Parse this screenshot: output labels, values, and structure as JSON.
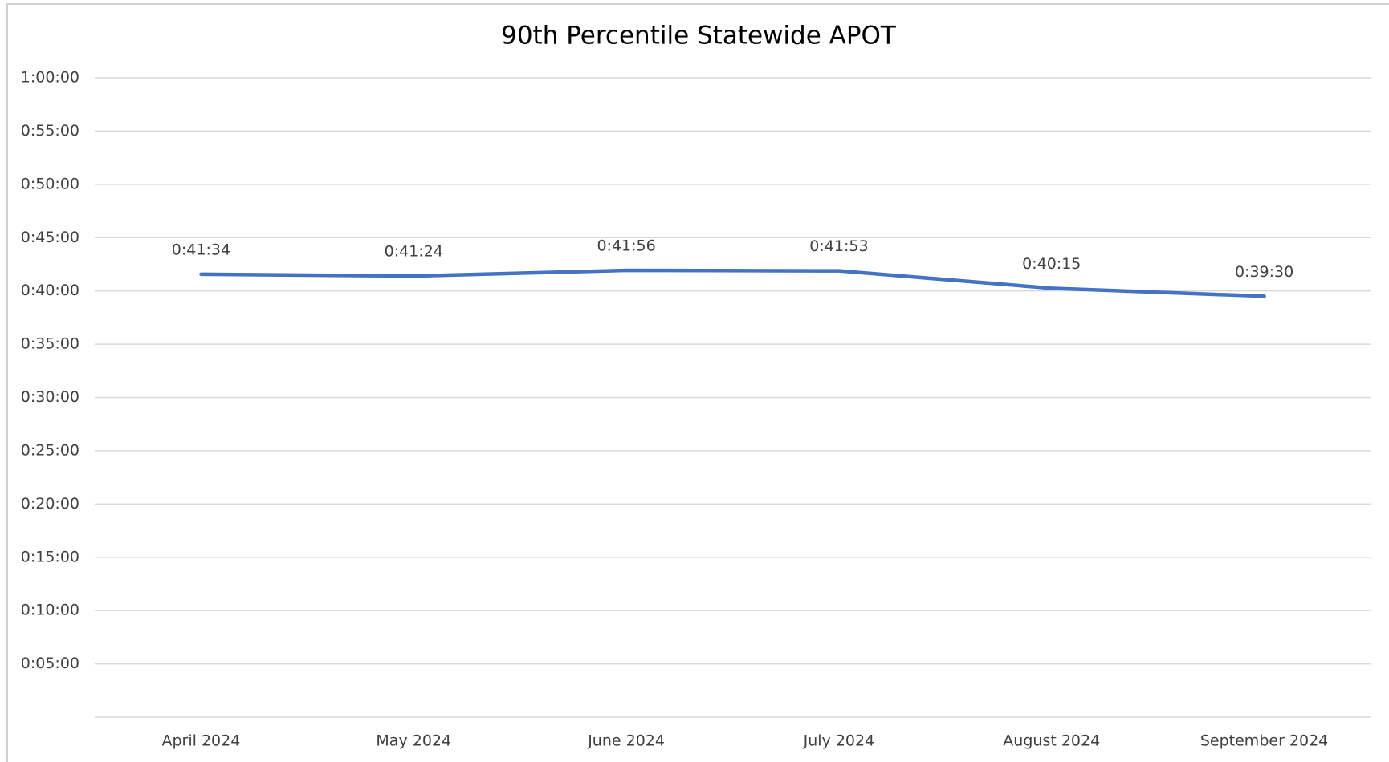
{
  "chart_data": {
    "type": "line",
    "title": "90th Percentile Statewide APOT",
    "categories": [
      "April 2024",
      "May 2024",
      "June 2024",
      "July 2024",
      "August 2024",
      "September 2024"
    ],
    "series": [
      {
        "name": "90th Percentile Statewide APOT",
        "color": "#4472c4",
        "values": [
          2494,
          2484,
          2516,
          2513,
          2415,
          2370
        ],
        "value_labels": [
          "0:41:34",
          "0:41:24",
          "0:41:56",
          "0:41:53",
          "0:40:15",
          "0:39:30"
        ]
      }
    ],
    "ylim": [
      0,
      3600
    ],
    "yticks": [
      {
        "value": 300,
        "label": "0:05:00"
      },
      {
        "value": 600,
        "label": "0:10:00"
      },
      {
        "value": 900,
        "label": "0:15:00"
      },
      {
        "value": 1200,
        "label": "0:20:00"
      },
      {
        "value": 1500,
        "label": "0:25:00"
      },
      {
        "value": 1800,
        "label": "0:30:00"
      },
      {
        "value": 2100,
        "label": "0:35:00"
      },
      {
        "value": 2400,
        "label": "0:40:00"
      },
      {
        "value": 2700,
        "label": "0:45:00"
      },
      {
        "value": 3000,
        "label": "0:50:00"
      },
      {
        "value": 3300,
        "label": "0:55:00"
      },
      {
        "value": 3600,
        "label": "1:00:00"
      }
    ],
    "grid": true
  }
}
